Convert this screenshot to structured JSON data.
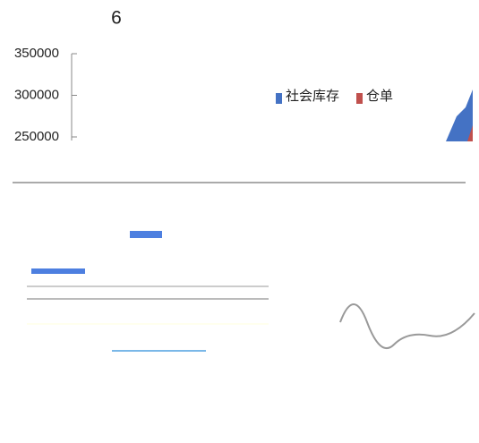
{
  "chart_data": {
    "type": "area",
    "title": "6",
    "series": [
      {
        "name": "社会库存",
        "color": "#4472c4"
      },
      {
        "name": "仓单",
        "color": "#c0504d"
      }
    ],
    "ylim": [
      250000,
      350000
    ],
    "yticks": [
      250000,
      300000,
      350000
    ]
  }
}
